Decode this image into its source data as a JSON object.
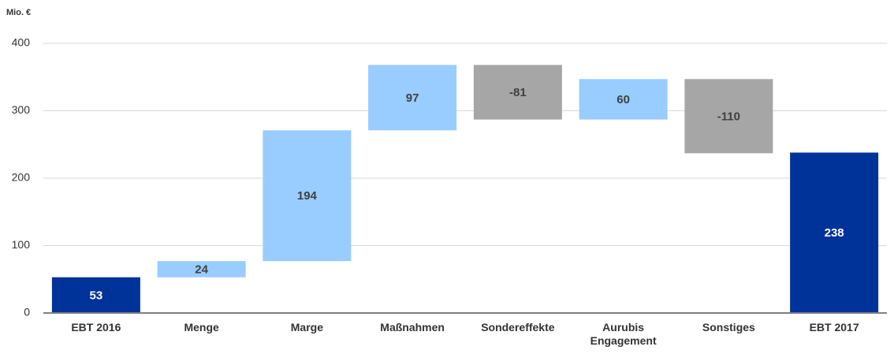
{
  "chart_data": {
    "type": "waterfall",
    "y_label": "Mio. €",
    "categories": [
      "EBT 2016",
      "Menge",
      "Marge",
      "Maßnahmen",
      "Sondereffekte",
      "Aurubis Engagement",
      "Sonstiges",
      "EBT 2017"
    ],
    "values": [
      53,
      24,
      194,
      97,
      -81,
      60,
      -110,
      238
    ],
    "measure": [
      "total",
      "relative",
      "relative",
      "relative",
      "relative",
      "relative",
      "relative",
      "total"
    ],
    "colors": {
      "total": "#003399",
      "increase": "#99ccff",
      "decrease": "#a6a6a6"
    },
    "ylim": [
      0,
      400
    ],
    "yticks": [
      0,
      100,
      200,
      300,
      400
    ],
    "grid": true
  }
}
